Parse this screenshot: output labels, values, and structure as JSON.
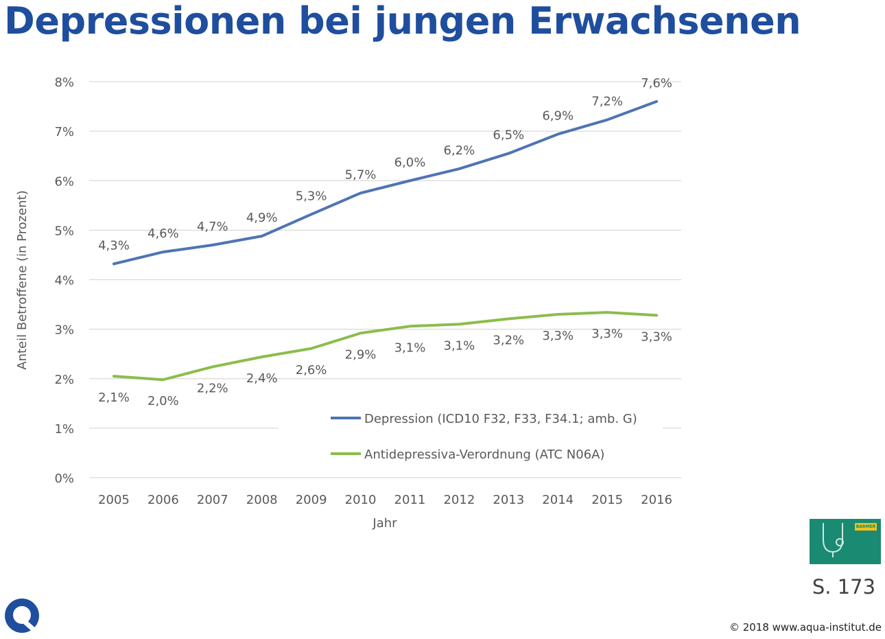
{
  "title": "Depressionen bei jungen Erwachsenen",
  "page_ref": "S. 173",
  "copyright": "© 2018 www.aqua-institut.de",
  "book_logo_text": "BARMER",
  "colors": {
    "title": "#1f4e9e",
    "series1": "#4f74b5",
    "series2": "#8bbd4b",
    "book": "#1a8a72"
  },
  "chart_data": {
    "type": "line",
    "title": "",
    "xlabel": "Jahr",
    "ylabel": "Anteil Betroffene (in Prozent)",
    "ylim": [
      0,
      8
    ],
    "yticks": [
      "0%",
      "1%",
      "2%",
      "3%",
      "4%",
      "5%",
      "6%",
      "7%",
      "8%"
    ],
    "categories": [
      "2005",
      "2006",
      "2007",
      "2008",
      "2009",
      "2010",
      "2011",
      "2012",
      "2013",
      "2014",
      "2015",
      "2016"
    ],
    "grid": true,
    "legend_position": "inside-bottom-right",
    "series": [
      {
        "name": "Depression (ICD10 F32, F33, F34.1; amb. G)",
        "color": "#4f74b5",
        "values": [
          4.32,
          4.56,
          4.7,
          4.88,
          5.32,
          5.75,
          6.0,
          6.24,
          6.55,
          6.94,
          7.23,
          7.6
        ],
        "labels": [
          "4,3%",
          "4,6%",
          "4,7%",
          "4,9%",
          "5,3%",
          "5,7%",
          "6,0%",
          "6,2%",
          "6,5%",
          "6,9%",
          "7,2%",
          "7,6%"
        ],
        "label_position": "above"
      },
      {
        "name": "Antidepressiva-Verordnung (ATC N06A)",
        "color": "#8bbd4b",
        "values": [
          2.05,
          1.98,
          2.24,
          2.44,
          2.61,
          2.92,
          3.06,
          3.1,
          3.21,
          3.3,
          3.34,
          3.28
        ],
        "labels": [
          "2,1%",
          "2,0%",
          "2,2%",
          "2,4%",
          "2,6%",
          "2,9%",
          "3,1%",
          "3,1%",
          "3,2%",
          "3,3%",
          "3,3%",
          "3,3%"
        ],
        "label_position": "below"
      }
    ]
  }
}
